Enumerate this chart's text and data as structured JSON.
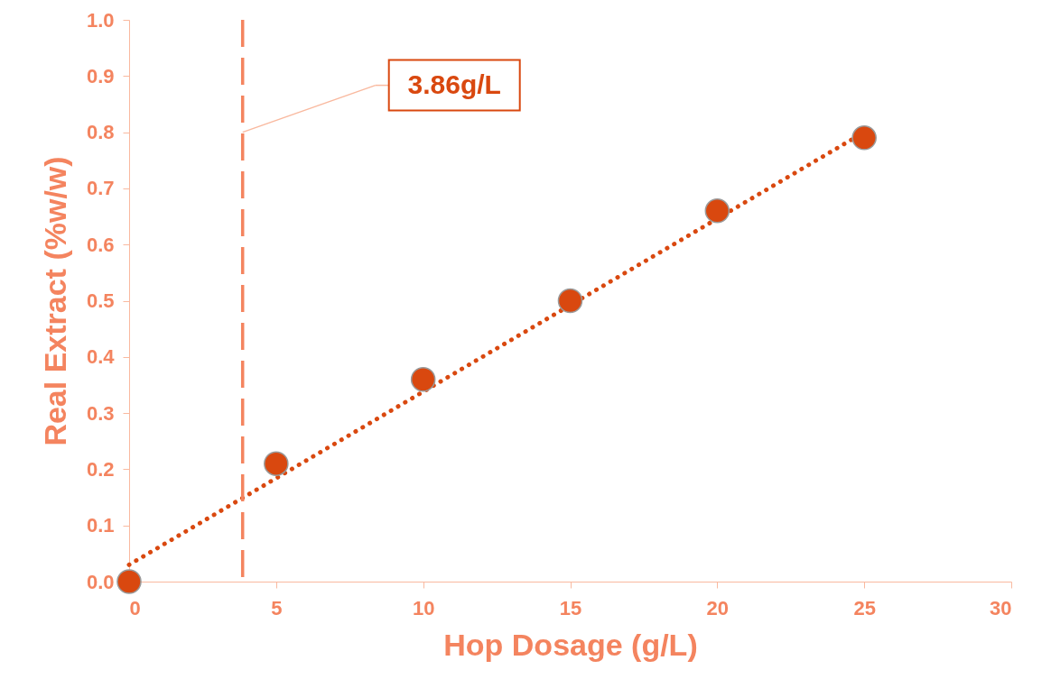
{
  "chart_data": {
    "type": "scatter",
    "xlabel": "Hop Dosage (g/L)",
    "ylabel": "Real Extract (%w/w)",
    "x": [
      0,
      5,
      10,
      15,
      20,
      25
    ],
    "series": [
      {
        "color": "#d9480f",
        "values": [
          0,
          0.21,
          0.36,
          0.5,
          0.66,
          0.79
        ]
      },
      {
        "type": "line",
        "color": "#d9480f",
        "line_style": "dotted",
        "marker": "none",
        "x": [
          0,
          25
        ],
        "values": [
          0.03,
          0.8
        ]
      }
    ],
    "marker": "circle",
    "xlim": [
      0,
      30
    ],
    "xticks": [
      0,
      5,
      10,
      15,
      20,
      25,
      30
    ],
    "ylim": [
      0,
      1
    ],
    "yticks": [
      {
        "value": 0,
        "label": "0.0"
      },
      0.1,
      0.2,
      0.3,
      0.4,
      0.5,
      0.6,
      0.7,
      0.8,
      0.9,
      {
        "value": 1,
        "label": "1.0"
      }
    ],
    "grid": false,
    "ref_lines": [
      {
        "axis": "x",
        "value": 3.86,
        "color": "#f4845f",
        "line_style": "dashed"
      }
    ],
    "annotations": [
      {
        "text": "3.86g/L",
        "x": 3.86,
        "y": 0.8
      }
    ]
  }
}
